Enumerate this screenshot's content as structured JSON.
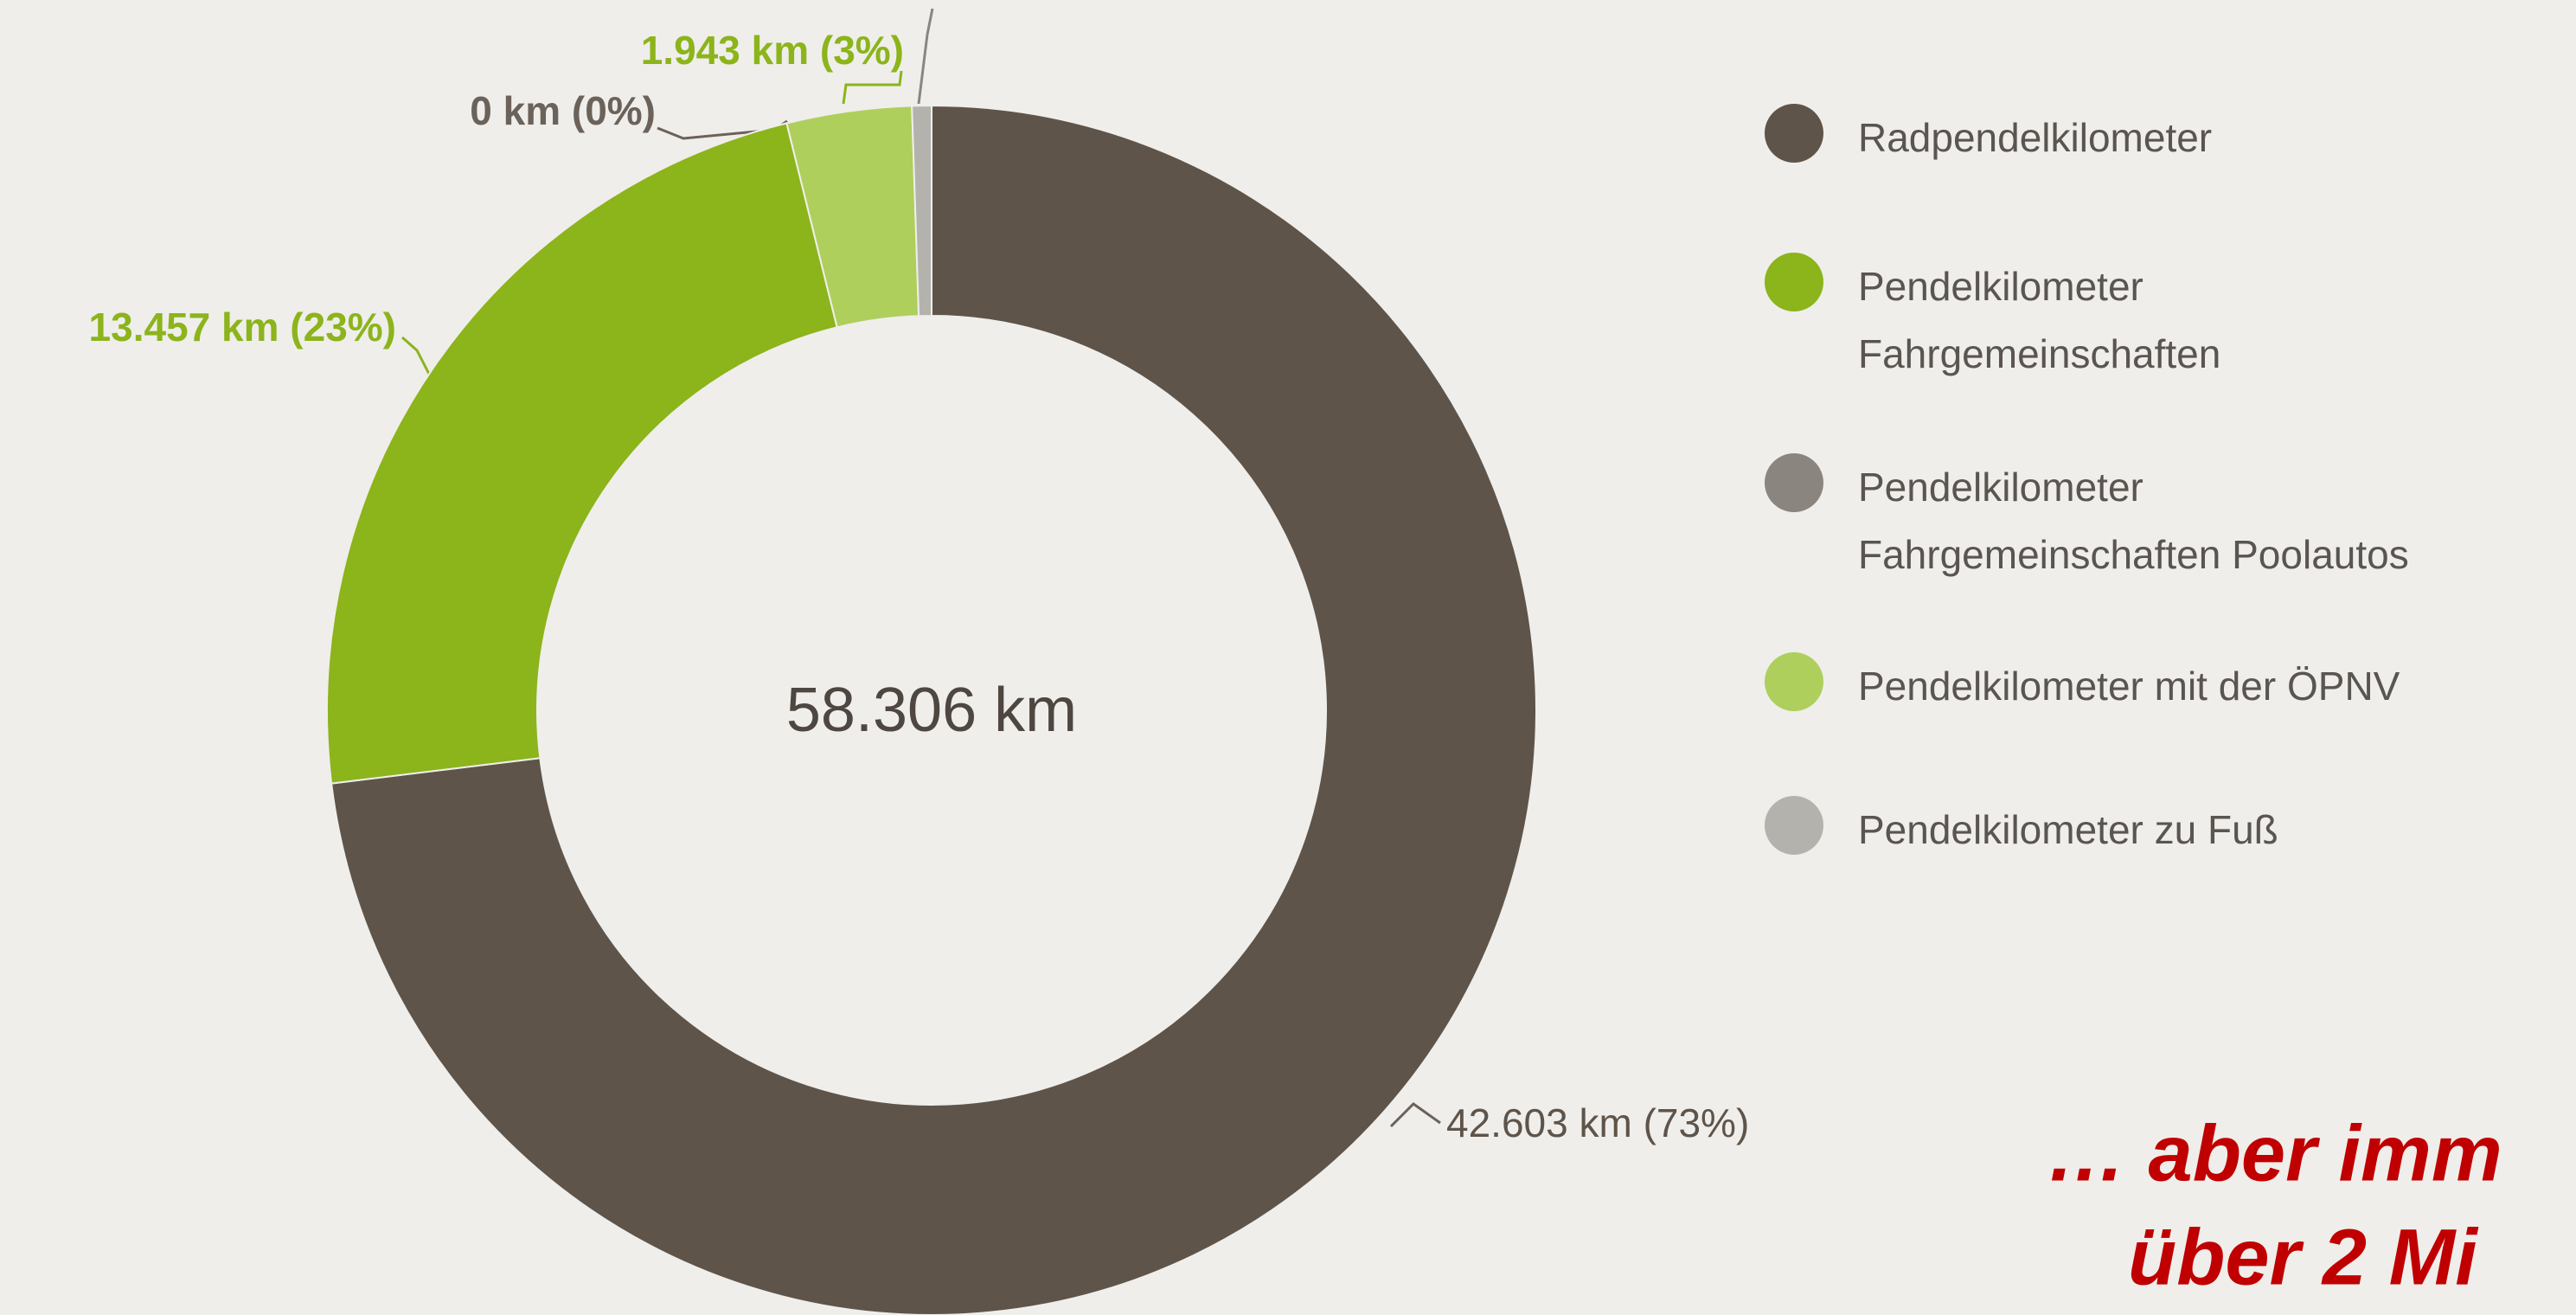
{
  "chart_data": {
    "type": "donut",
    "center_label": "58.306 km",
    "categories": [
      "Radpendelkilometer",
      "Pendelkilometer Fahrgemeinschaften",
      "Pendelkilometer Fahrgemeinschaften Poolautos",
      "Pendelkilometer mit der ÖPNV",
      "Pendelkilometer zu Fuß"
    ],
    "values": [
      42603,
      13457,
      0,
      1943,
      303
    ],
    "value_labels": [
      "42.603 km (73%)",
      "13.457 km (23%)",
      "0 km (0%)",
      "1.943 km (3%)",
      null
    ],
    "colors": [
      "#5e544a",
      "#8cb41b",
      "#8a857f",
      "#aecf5c",
      "#b4b2ad"
    ],
    "annotations": [
      "… aber imm",
      "über 2 Mi"
    ]
  }
}
